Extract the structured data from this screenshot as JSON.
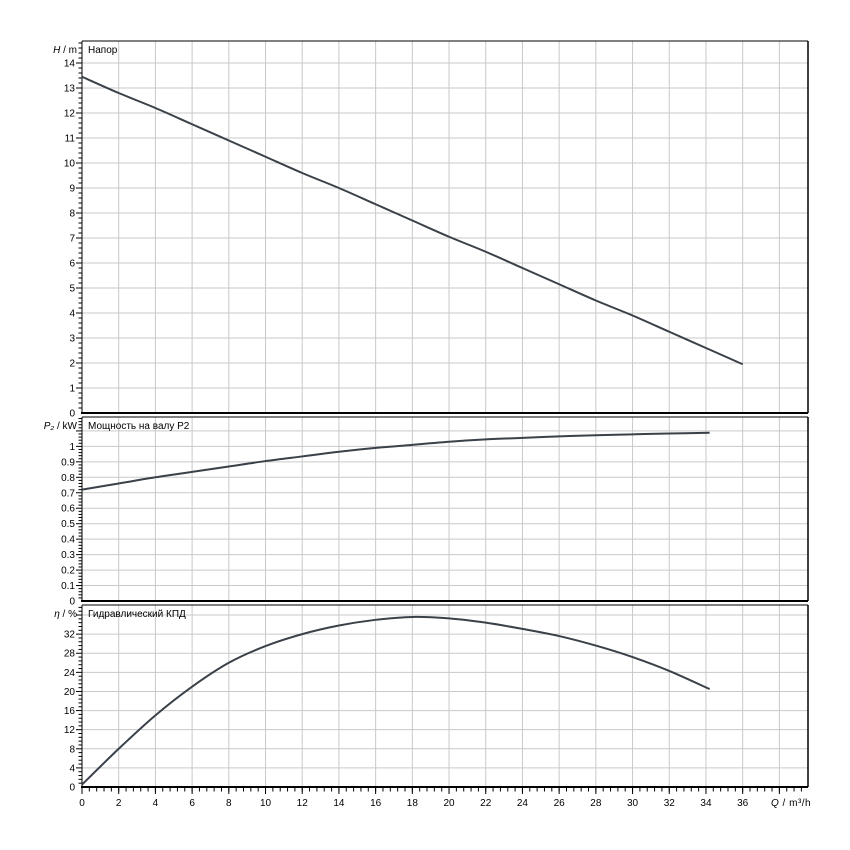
{
  "figure": {
    "background": "#ffffff",
    "colors": {
      "curve": "#3a4149",
      "grid": "#c9c9c9",
      "axis": "#000000",
      "text": "#000000"
    },
    "x_axis": {
      "label": "Q / m³/h",
      "symbol": "Q",
      "unit": "m³/h",
      "min": 0,
      "max": 39.56,
      "major_tick_step": 2,
      "minor_tick_step": 0.4,
      "grid_max": 38,
      "tick_labels": [
        0,
        2,
        4,
        6,
        8,
        10,
        12,
        14,
        16,
        18,
        20,
        22,
        24,
        26,
        28,
        30,
        32,
        34,
        36
      ]
    }
  },
  "chart_data": [
    {
      "type": "line",
      "title": "Напор",
      "ylabel": "H / m",
      "ysymbol": "H",
      "yunit": "m",
      "ylim": [
        0,
        14.88
      ],
      "ytick_step": 1,
      "ytick_labels": [
        0,
        1,
        2,
        3,
        4,
        5,
        6,
        7,
        8,
        9,
        10,
        11,
        12,
        13,
        14
      ],
      "x": [
        0,
        2,
        4,
        6,
        8,
        10,
        12,
        14,
        16,
        18,
        20,
        22,
        24,
        26,
        28,
        30,
        32,
        34,
        36
      ],
      "y": [
        13.45,
        12.8,
        12.2,
        11.55,
        10.9,
        10.25,
        9.6,
        9.0,
        8.35,
        7.7,
        7.05,
        6.45,
        5.8,
        5.15,
        4.5,
        3.9,
        3.25,
        2.6,
        1.95
      ]
    },
    {
      "type": "line",
      "title": "Мощность на валу P2",
      "ylabel": "P₂ / kW",
      "ysymbol": "P₂",
      "yunit": "kW",
      "ylim": [
        0,
        1.19
      ],
      "ytick_step": 0.1,
      "ytick_labels": [
        0,
        0.1,
        0.2,
        0.3,
        0.4,
        0.5,
        0.6,
        0.7,
        0.8,
        0.9,
        1
      ],
      "x": [
        0,
        2,
        4,
        6,
        8,
        10,
        12,
        14,
        16,
        18,
        20,
        22,
        24,
        26,
        28,
        30,
        32,
        34.2
      ],
      "y": [
        0.72,
        0.76,
        0.8,
        0.835,
        0.87,
        0.905,
        0.935,
        0.965,
        0.99,
        1.01,
        1.03,
        1.045,
        1.055,
        1.065,
        1.072,
        1.078,
        1.083,
        1.088
      ]
    },
    {
      "type": "line",
      "title": "Гидравлический КПД",
      "ylabel": "η / %",
      "ysymbol": "η",
      "yunit": "%",
      "ylim": [
        0,
        38.1
      ],
      "ytick_step": 4,
      "ytick_labels": [
        0,
        4,
        8,
        12,
        16,
        20,
        24,
        28,
        32
      ],
      "x": [
        0,
        2,
        4,
        6,
        8,
        10,
        12,
        14,
        16,
        18,
        20,
        22,
        24,
        26,
        28,
        30,
        32,
        34.2
      ],
      "y": [
        0.5,
        8,
        15,
        21,
        26,
        29.5,
        32,
        33.8,
        35,
        35.6,
        35.3,
        34.4,
        33.1,
        31.6,
        29.6,
        27.2,
        24.3,
        20.5
      ]
    }
  ]
}
